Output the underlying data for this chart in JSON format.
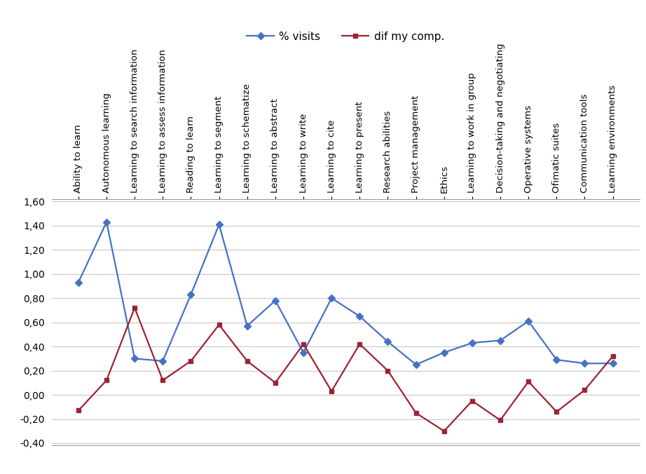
{
  "categories": [
    "Ability to learn",
    "Autonomous learning",
    "Learning to search information",
    "Learning to assess information",
    "Reading to learn",
    "Learning to segment",
    "Learning to schematize",
    "Learning to abstract",
    "Learning to write",
    "Learning to cite",
    "Learning to present",
    "Research abilities",
    "Project management",
    "Ethics",
    "Learning to work in group",
    "Decision-taking and negotiating",
    "Operative systems",
    "Ofimatic suites",
    "Communication tools",
    "Learning environments"
  ],
  "visits": [
    0.93,
    1.43,
    0.3,
    0.28,
    0.83,
    1.41,
    0.57,
    0.78,
    0.35,
    0.8,
    0.65,
    0.44,
    0.25,
    0.35,
    0.43,
    0.45,
    0.61,
    0.29,
    0.26,
    0.26
  ],
  "dif_comp": [
    -0.13,
    0.12,
    0.72,
    0.12,
    0.28,
    0.58,
    0.28,
    0.1,
    0.42,
    0.03,
    0.42,
    0.2,
    -0.15,
    -0.3,
    -0.05,
    -0.21,
    0.11,
    -0.14,
    0.04,
    0.32
  ],
  "visits_color": "#4472C4",
  "dif_comp_color": "#9B2335",
  "visits_label": "% visits",
  "dif_comp_label": "dif my comp.",
  "ylim": [
    -0.4,
    1.6
  ],
  "yticks": [
    -0.4,
    -0.2,
    0.0,
    0.2,
    0.4,
    0.6,
    0.8,
    1.0,
    1.2,
    1.4,
    1.6
  ],
  "grid_color": "#C8C8C8",
  "background_color": "#FFFFFF",
  "legend_fontsize": 11,
  "tick_label_fontsize": 9.5,
  "ytick_label_fontsize": 10
}
